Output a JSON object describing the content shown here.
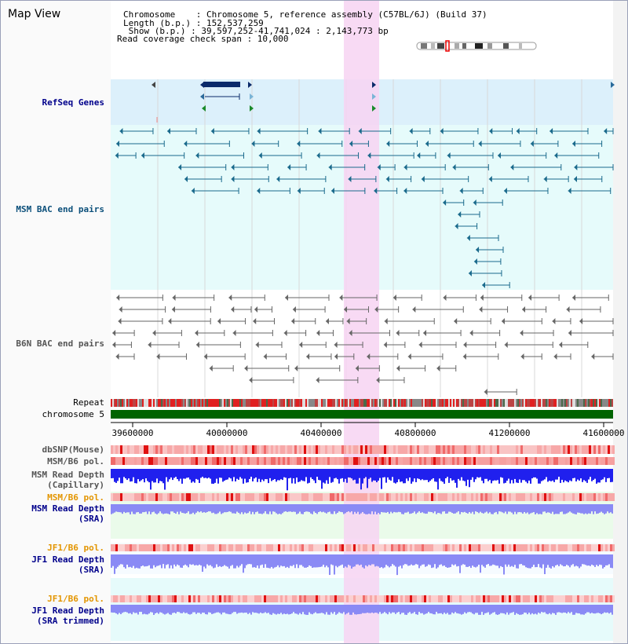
{
  "title": "Map View",
  "info": {
    "chromosome": "Chromosome    : Chromosome 5, reference assembly (C57BL/6J) (Build 37)",
    "length": "Length (b.p.) : 152,537,259",
    "show": " Show (b.p.) : 39,597,252-41,741,024 : 2,143,773 bp",
    "coverage": "Read coverage check span : 10,000"
  },
  "labels": {
    "refseq": "RefSeq Genes",
    "msm_bac": "MSM BAC end pairs",
    "b6n_bac": "B6N BAC end pairs",
    "repeat": "Repeat",
    "chromosome": "chromosome 5",
    "dbsnp": "dbSNP(Mouse)",
    "msm_b6_pol": "MSM/B6 pol.",
    "msm_depth_cap_1": "MSM Read Depth",
    "msm_depth_cap_2": "(Capillary)",
    "msm_b6_pol_sra": "MSM/B6 pol.",
    "msm_depth_sra_1": "MSM Read Depth",
    "msm_depth_sra_2": "(SRA)",
    "jf1_b6_pol": "JF1/B6 pol.",
    "jf1_depth_sra_1": "JF1 Read Depth",
    "jf1_depth_sra_2": "(SRA)",
    "jf1_b6_pol_trim": "JF1/B6 pol.",
    "jf1_depth_trim_1": "JF1 Read Depth",
    "jf1_depth_trim_2": "(SRA trimmed)"
  },
  "axis": {
    "ticks": [
      "39600000",
      "40000000",
      "40400000",
      "40800000",
      "41200000",
      "41600000"
    ]
  },
  "colors": {
    "highlight": "#f7d4f2",
    "refseq_bg": "#dcf0fb",
    "msm_bg": "#e6fbfb",
    "msm_feature": "#1a6a8c",
    "b6n_feature": "#666666",
    "chromosome_bar": "#006400",
    "snp_red": "#f06060",
    "depth_blue": "#2020ee",
    "depth_light": "#8a8af5"
  }
}
